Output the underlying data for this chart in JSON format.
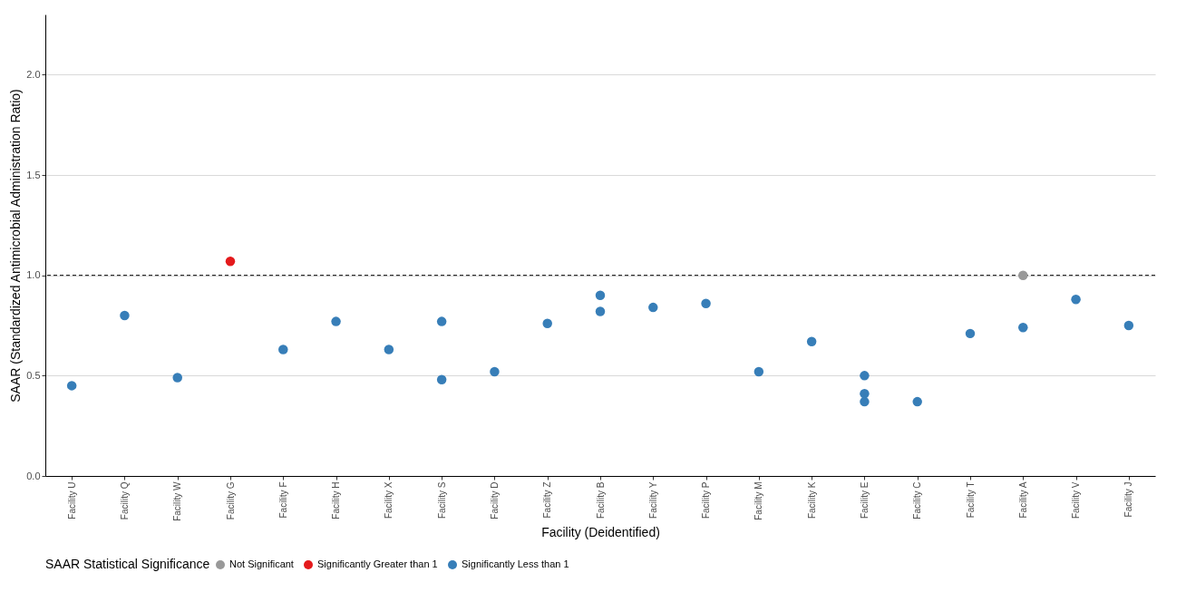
{
  "chart_data": {
    "type": "scatter",
    "xlabel": "Facility (Deidentified)",
    "ylabel": "SAAR (Standardized Antimicrobial Administration Ratio)",
    "legend_title": "SAAR Statistical Significance",
    "categories": [
      "Facility U",
      "Facility Q",
      "Facility W",
      "Facility G",
      "Facility F",
      "Facility H",
      "Facility X",
      "Facility S",
      "Facility D",
      "Facility Z",
      "Facility B",
      "Facility Y",
      "Facility P",
      "Facility M",
      "Facility K",
      "Facility E",
      "Facility C",
      "Facility T",
      "Facility A",
      "Facility V",
      "Facility J"
    ],
    "series": [
      {
        "name": "Not Significant",
        "color": "#999999",
        "x": [
          "Facility A"
        ],
        "values": [
          1.0
        ]
      },
      {
        "name": "Significantly Greater than 1",
        "color": "#e41a1c",
        "x": [
          "Facility G"
        ],
        "values": [
          1.07
        ]
      },
      {
        "name": "Significantly Less than 1",
        "color": "#377eb8",
        "x": [
          "Facility U",
          "Facility Q",
          "Facility W",
          "Facility F",
          "Facility H",
          "Facility X",
          "Facility S",
          "Facility S",
          "Facility D",
          "Facility Z",
          "Facility B",
          "Facility B",
          "Facility Y",
          "Facility P",
          "Facility M",
          "Facility K",
          "Facility E",
          "Facility E",
          "Facility E",
          "Facility C",
          "Facility T",
          "Facility A",
          "Facility V",
          "Facility J"
        ],
        "values": [
          0.45,
          0.8,
          0.49,
          0.63,
          0.77,
          0.63,
          0.77,
          0.48,
          0.52,
          0.76,
          0.9,
          0.82,
          0.84,
          0.86,
          0.52,
          0.67,
          0.5,
          0.41,
          0.37,
          0.37,
          0.71,
          0.74,
          0.88,
          0.75
        ]
      }
    ],
    "ylim": [
      0,
      2.3
    ],
    "yticks": [
      {
        "value": 0,
        "label": "0.0"
      },
      {
        "value": 0.5,
        "label": "0.5"
      },
      {
        "value": 1,
        "label": "1.0"
      },
      {
        "value": 1.5,
        "label": "1.5"
      },
      {
        "value": 2,
        "label": "2.0"
      }
    ],
    "ref_lines": [
      {
        "axis": "y",
        "value": 1,
        "line_style": "dashed",
        "color": "#000000"
      }
    ],
    "grid": "y",
    "legend": "bottom",
    "marker": "circle"
  }
}
